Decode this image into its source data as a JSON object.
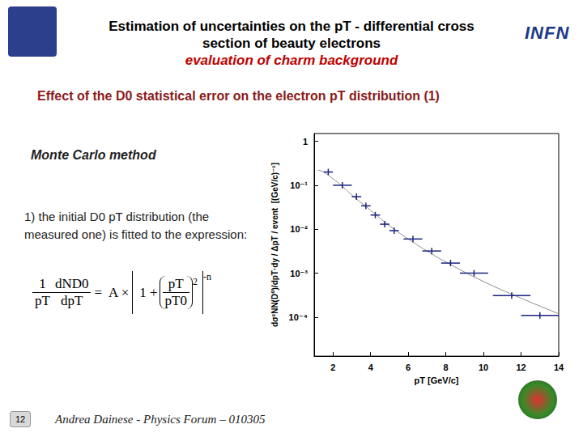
{
  "slide": {
    "title": [
      "Estimation of uncertainties on the pT - differential cross",
      "section of beauty electrons"
    ],
    "subtitle": "evaluation of charm background",
    "heading": "Effect of the D0 statistical error on the electron pT distribution (1)",
    "method": "Monte Carlo method",
    "step": "1) the initial D0 pT distribution (the measured one) is fitted to the expression:",
    "formula": {
      "lhs_num": "1",
      "lhs_den": "pT",
      "deriv_num": "dND0",
      "deriv_den": "dpT",
      "equals": "=",
      "factor": "A ×",
      "one": "1 +",
      "ratio_num": "pT",
      "ratio_den": "pT0",
      "inner_power": "2",
      "outer_power": "-n"
    },
    "logo": "INFN",
    "footer": "Andrea Dainese - Physics Forum – 010305",
    "page": 12
  },
  "chart_data": {
    "type": "scatter",
    "xlabel": "pT [GeV/c]",
    "ylabel": "dσ²NN(D⁰)/dpT·dy / ΔpT / event  [(GeV/c)⁻¹]",
    "xlim": [
      1,
      14
    ],
    "xticks": [
      2,
      4,
      6,
      8,
      10,
      12,
      14
    ],
    "ylim": [
      1.3e-05,
      1.5
    ],
    "yticks": [
      {
        "value": 0.0001,
        "label": "10⁻⁴"
      },
      {
        "value": 0.001,
        "label": "10⁻³"
      },
      {
        "value": 0.01,
        "label": "10⁻²"
      },
      {
        "value": 0.1,
        "label": "10⁻¹"
      },
      1
    ],
    "log": "y",
    "grid": false,
    "series": [
      {
        "type": "line",
        "color": "#8c8c8c",
        "line_style": "solid",
        "x": [
          1.2,
          1.5,
          2,
          2.5,
          3,
          4,
          5,
          6,
          7,
          8,
          10,
          12,
          14
        ],
        "values": [
          0.22,
          0.2,
          0.14,
          0.095,
          0.06,
          0.027,
          0.012,
          0.006,
          0.0032,
          0.0018,
          0.00065,
          0.00027,
          0.00012
        ]
      },
      {
        "type": "scatter",
        "color": "#1a237e",
        "marker": "cross",
        "x": [
          1.75,
          2.5,
          3.25,
          3.75,
          4.25,
          4.75,
          5.25,
          6.25,
          7.25,
          8.25,
          9.5,
          11.5,
          13
        ],
        "values": [
          0.2,
          0.1,
          0.055,
          0.034,
          0.021,
          0.013,
          0.0093,
          0.006,
          0.0032,
          0.0017,
          0.001,
          0.00031,
          0.00011
        ],
        "x_errors": [
          0.25,
          0.5,
          0.25,
          0.25,
          0.25,
          0.25,
          0.25,
          0.5,
          0.5,
          0.5,
          0.75,
          1,
          1
        ]
      }
    ]
  }
}
